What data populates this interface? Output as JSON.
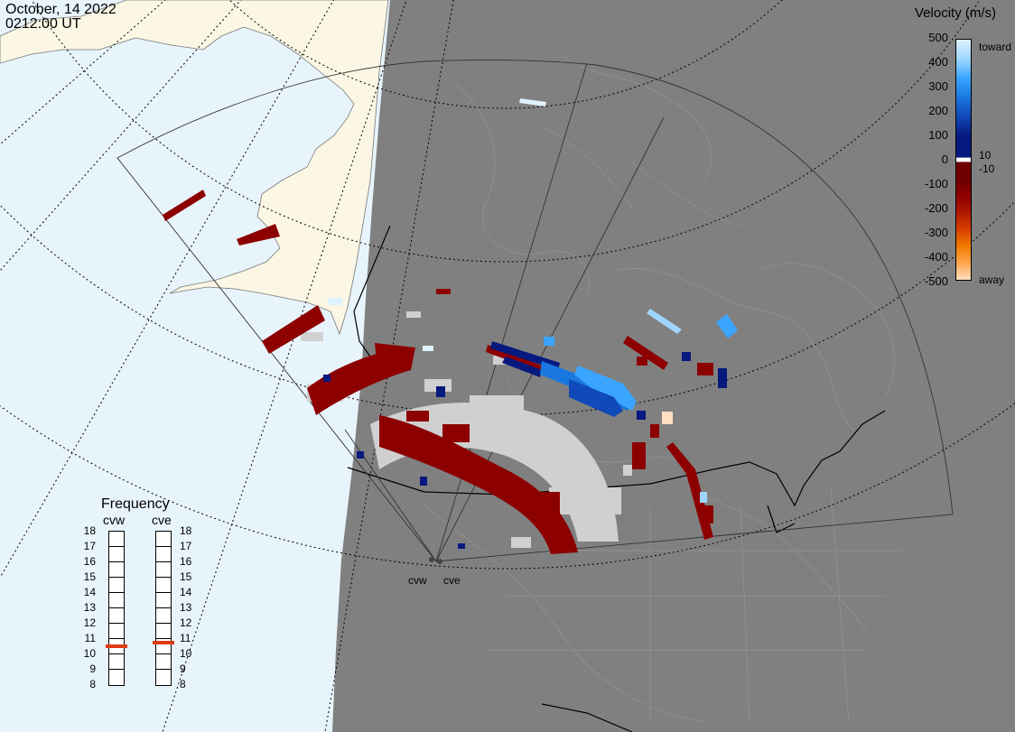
{
  "title": {
    "date": "October, 14 2022",
    "time": "0212:00 UT"
  },
  "colorbar": {
    "title": "Velocity (m/s)",
    "ticks": [
      "500",
      "400",
      "300",
      "200",
      "100",
      "0",
      "-100",
      "-200",
      "-300",
      "-400",
      "-500"
    ],
    "side_labels": {
      "toward": "toward",
      "away": "away",
      "plus10": "10",
      "minus10": "-10"
    },
    "colors": {
      "toward": [
        "#dff2ff",
        "#9fd6ff",
        "#3aa5ff",
        "#1978e0",
        "#1049b8",
        "#06197f"
      ],
      "away": [
        "#6e0000",
        "#8c0000",
        "#b01800",
        "#d84000",
        "#f27a00",
        "#ffa64d",
        "#ffe0c0"
      ]
    }
  },
  "frequency": {
    "title": "Frequency",
    "radars": [
      {
        "name": "cvw",
        "freq_mhz": 10.5
      },
      {
        "name": "cve",
        "freq_mhz": 10.7
      }
    ],
    "scale": [
      "18",
      "17",
      "16",
      "15",
      "14",
      "13",
      "12",
      "11",
      "10",
      "9",
      "8"
    ],
    "marker_color": "#e03c14"
  },
  "sites": {
    "west": "cvw",
    "east": "cve"
  },
  "map_colors": {
    "ocean": "#e8f4fc",
    "land_daylight": "#fbf7e4",
    "night": "#808080",
    "ground_scatter": "#d0d0d0",
    "coast": "#999999"
  }
}
